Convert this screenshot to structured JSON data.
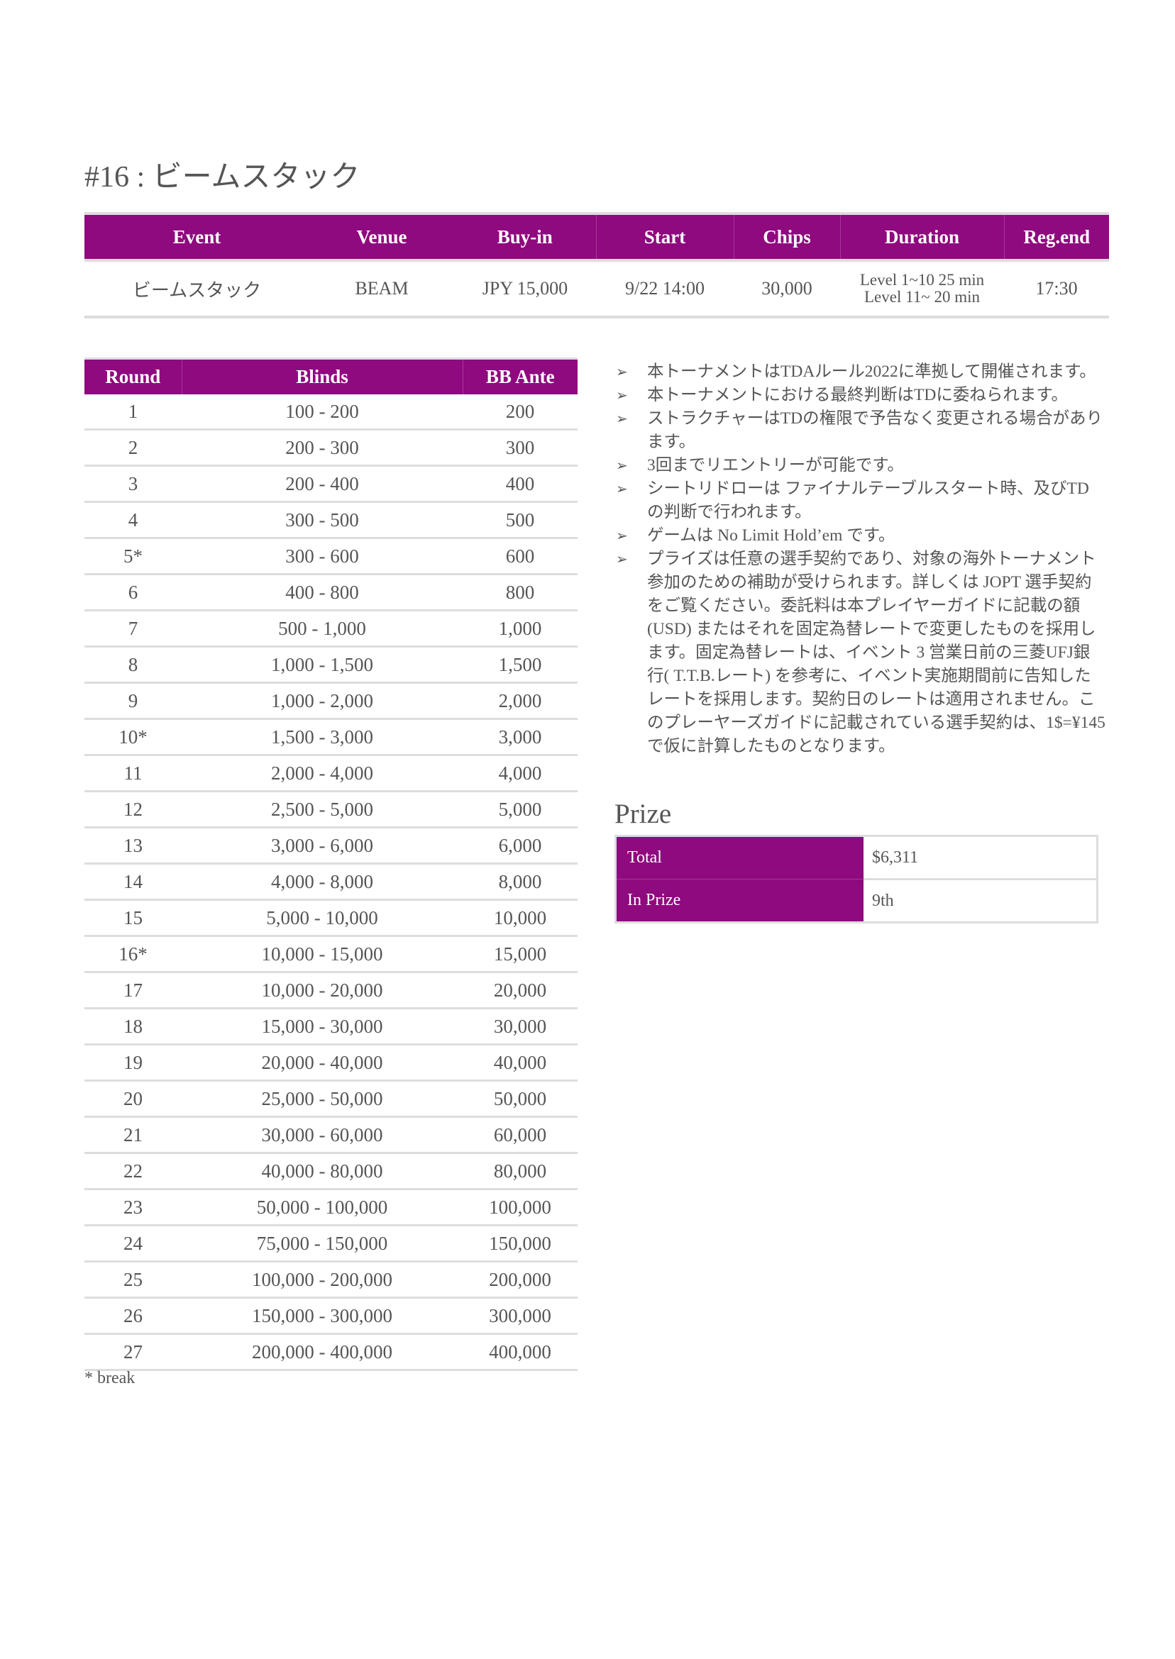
{
  "title": "#16 : ビームスタック",
  "event_table": {
    "headers": [
      "Event",
      "Venue",
      "Buy-in",
      "Start",
      "Chips",
      "Duration",
      "Reg.end"
    ],
    "row": {
      "event": "ビームスタック",
      "venue": "BEAM",
      "buyin": "JPY 15,000",
      "start": "9/22 14:00",
      "chips": "30,000",
      "duration_1": "Level 1~10 25 min",
      "duration_2": "Level 11~ 20 min",
      "regend": "17:30"
    }
  },
  "blinds_table": {
    "headers": [
      "Round",
      "Blinds",
      "BB Ante"
    ],
    "rows": [
      [
        "1",
        "100 - 200",
        "200"
      ],
      [
        "2",
        "200 - 300",
        "300"
      ],
      [
        "3",
        "200 - 400",
        "400"
      ],
      [
        "4",
        "300 - 500",
        "500"
      ],
      [
        "5*",
        "300 - 600",
        "600"
      ],
      [
        "6",
        "400 - 800",
        "800"
      ],
      [
        "7",
        "500 - 1,000",
        "1,000"
      ],
      [
        "8",
        "1,000 - 1,500",
        "1,500"
      ],
      [
        "9",
        "1,000 - 2,000",
        "2,000"
      ],
      [
        "10*",
        "1,500 - 3,000",
        "3,000"
      ],
      [
        "11",
        "2,000 - 4,000",
        "4,000"
      ],
      [
        "12",
        "2,500 - 5,000",
        "5,000"
      ],
      [
        "13",
        "3,000 - 6,000",
        "6,000"
      ],
      [
        "14",
        "4,000 - 8,000",
        "8,000"
      ],
      [
        "15",
        "5,000 - 10,000",
        "10,000"
      ],
      [
        "16*",
        "10,000 - 15,000",
        "15,000"
      ],
      [
        "17",
        "10,000 - 20,000",
        "20,000"
      ],
      [
        "18",
        "15,000 - 30,000",
        "30,000"
      ],
      [
        "19",
        "20,000 - 40,000",
        "40,000"
      ],
      [
        "20",
        "25,000 - 50,000",
        "50,000"
      ],
      [
        "21",
        "30,000 - 60,000",
        "60,000"
      ],
      [
        "22",
        "40,000 - 80,000",
        "80,000"
      ],
      [
        "23",
        "50,000 - 100,000",
        "100,000"
      ],
      [
        "24",
        "75,000 - 150,000",
        "150,000"
      ],
      [
        "25",
        "100,000 - 200,000",
        "200,000"
      ],
      [
        "26",
        "150,000 - 300,000",
        "300,000"
      ],
      [
        "27",
        "200,000 - 400,000",
        "400,000"
      ]
    ],
    "footnote": "* break"
  },
  "notes": {
    "bullet_icon": "arrowhead-bullet",
    "items": [
      "本トーナメントはTDAルール2022に準拠して開催されます。",
      "本トーナメントにおける最終判断はTDに委ねられます。",
      "ストラクチャーはTDの権限で予告なく変更される場合があります。",
      "3回までリエントリーが可能です。",
      "シートリドローは ファイナルテーブルスタート時、及びTDの判断で行われます。",
      "ゲームは No Limit Hold’em です。",
      "プライズは任意の選手契約であり、対象の海外トーナメント参加のための補助が受けられます。詳しくは JOPT 選手契約をご覧ください。委託料は本プレイヤーガイドに記載の額(USD) またはそれを固定為替レートで変更したものを採用します。固定為替レートは、イベント 3 営業日前の三菱UFJ銀行( T.T.B.レート) を参考に、イベント実施期間前に告知したレートを採用します。契約日のレートは適用されません。このプレーヤーズガイドに記載されている選手契約は、1$=¥145 で仮に計算したものとなります。"
    ]
  },
  "prize": {
    "title": "Prize",
    "rows": [
      {
        "label": "Total",
        "value": "$6,311"
      },
      {
        "label": "In Prize",
        "value": "9th"
      }
    ]
  },
  "colors": {
    "accent": "#8e0a7e",
    "text": "#555555",
    "rule": "#dddddd"
  }
}
